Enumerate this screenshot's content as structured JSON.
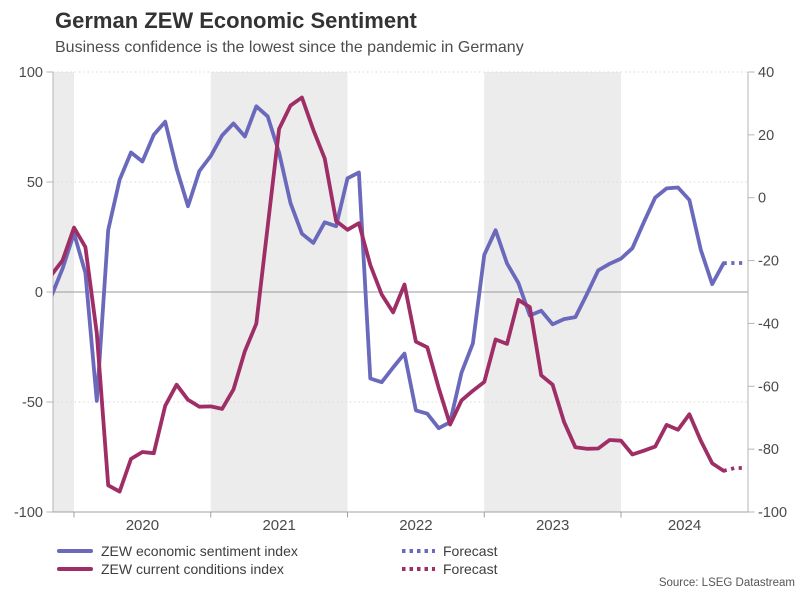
{
  "header": {
    "title": "German ZEW Economic Sentiment",
    "subtitle": "Business confidence is the lowest since the pandemic in Germany"
  },
  "source": "Source: LSEG Datastream",
  "colors": {
    "sentiment": "#6a69bb",
    "conditions": "#9f2e66",
    "band": "#ececec",
    "gridline": "#d9d9d9",
    "zero_line": "#9a9a9a",
    "axis_line": "#b4b4b4",
    "tick_text": "#4a4a4a"
  },
  "legend": [
    {
      "label": "ZEW economic sentiment index",
      "color": "#6a69bb",
      "style": "solid"
    },
    {
      "label": "ZEW current conditions index",
      "color": "#9f2e66",
      "style": "solid"
    },
    {
      "label": "Forecast",
      "color": "#6a69bb",
      "style": "dotted"
    },
    {
      "label": "Forecast",
      "color": "#9f2e66",
      "style": "dotted"
    }
  ],
  "chart_data": {
    "type": "line",
    "title": "German ZEW Economic Sentiment",
    "subtitle": "Business confidence is the lowest since the pandemic in Germany",
    "x_start_month": "2019-11",
    "x_tick_labels": [
      "2020",
      "2021",
      "2022",
      "2023",
      "2024"
    ],
    "left_axis": {
      "ticks": [
        100,
        50,
        0,
        -50,
        -100
      ],
      "min": -100,
      "max": 100
    },
    "right_axis": {
      "ticks": [
        40,
        20,
        0,
        -20,
        -40,
        -60,
        -80,
        -100
      ],
      "min": -100,
      "max": 40
    },
    "shaded_year_bands": [
      "2019 (partial)",
      "2021",
      "2023"
    ],
    "grid": "dotted horizontal at left-axis 100, 50, -50; solid line at 0",
    "legend_position": "bottom",
    "series": [
      {
        "name": "ZEW economic sentiment index",
        "axis": "left",
        "color": "#6a69bb",
        "monthly_values_from_2019_11": [
          -2.1,
          10.7,
          26.7,
          8.7,
          -49.5,
          28.2,
          51.0,
          63.4,
          59.3,
          71.5,
          77.4,
          56.1,
          39.0,
          55.0,
          61.8,
          71.2,
          76.6,
          70.7,
          84.4,
          79.8,
          63.3,
          40.4,
          26.5,
          22.3,
          31.7,
          29.9,
          51.7,
          54.3,
          -39.3,
          -41.0,
          -34.3,
          -28.0,
          -53.8,
          -55.3,
          -61.9,
          -59.2,
          -36.7,
          -23.3,
          16.9,
          28.1,
          13.0,
          4.1,
          -10.7,
          -8.5,
          -14.7,
          -12.3,
          -11.4,
          -1.1,
          9.8,
          12.8,
          15.2,
          19.9,
          31.7,
          42.9,
          47.1,
          47.5,
          41.8,
          19.2,
          3.6,
          13.1
        ],
        "forecast_values": [
          13.2,
          13.2
        ]
      },
      {
        "name": "ZEW current conditions index",
        "axis": "right",
        "color": "#9f2e66",
        "monthly_values_from_2019_11": [
          -24.7,
          -19.9,
          -9.5,
          -15.7,
          -43.1,
          -91.5,
          -93.5,
          -83.1,
          -80.9,
          -81.3,
          -66.2,
          -59.5,
          -64.3,
          -66.5,
          -66.4,
          -67.2,
          -61.0,
          -48.8,
          -40.1,
          -9.1,
          21.9,
          29.3,
          31.9,
          21.6,
          12.5,
          -7.4,
          -10.2,
          -8.1,
          -21.4,
          -30.8,
          -36.5,
          -27.6,
          -45.8,
          -47.6,
          -60.5,
          -72.2,
          -64.5,
          -61.4,
          -58.6,
          -45.1,
          -46.5,
          -32.5,
          -34.8,
          -56.5,
          -59.5,
          -71.3,
          -79.4,
          -79.9,
          -79.8,
          -77.1,
          -77.3,
          -81.7,
          -80.5,
          -79.2,
          -72.3,
          -73.8,
          -68.9,
          -77.3,
          -84.5,
          -86.9
        ],
        "forecast_values": [
          -86.0,
          -86.0
        ]
      }
    ]
  }
}
